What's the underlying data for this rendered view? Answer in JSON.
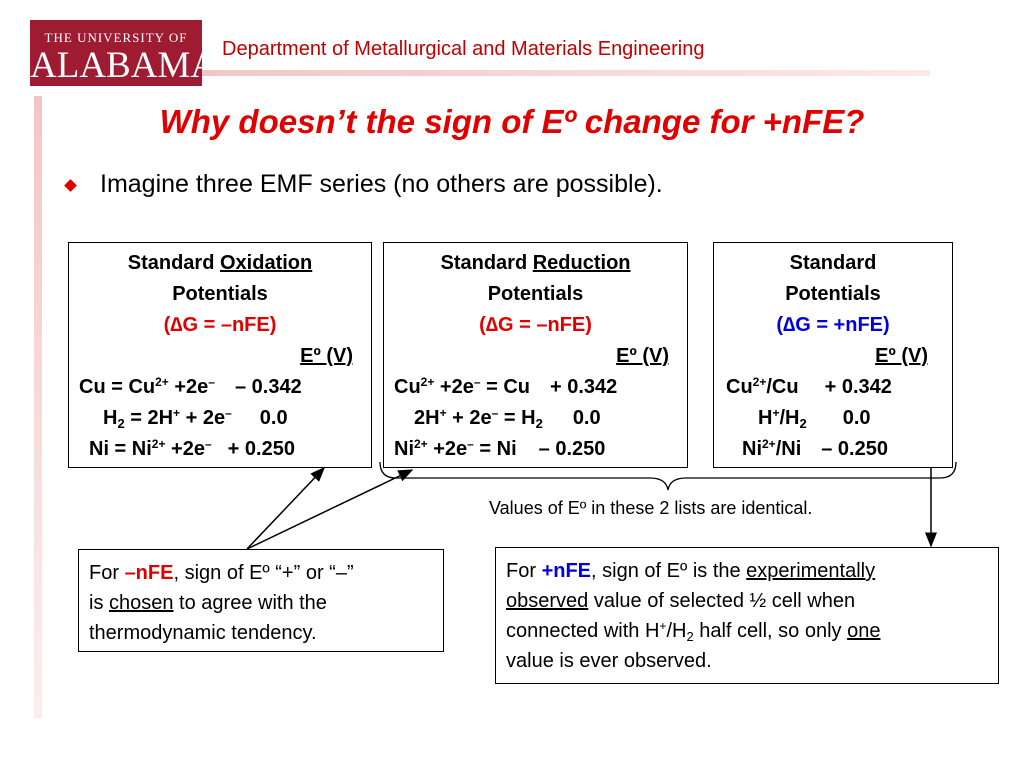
{
  "header": {
    "logo_line1": "THE UNIVERSITY OF",
    "logo_line2": "ALABAMA",
    "department": "Department of Metallurgical and Materials Engineering"
  },
  "title": "Why doesn’t the sign of Eº change for +nFE?",
  "bullet": "Imagine three EMF series (no others are possible).",
  "columns": {
    "oxidation": {
      "h1a": "Standard ",
      "h1b": "Oxidation",
      "h2": "Potentials",
      "eq": "(∆G = –nFE)",
      "unit": "Eº (V)",
      "r1": "Cu = Cu",
      "r1s": "2+",
      "r1b": " +2e",
      "r1c": "–",
      "r1v": "– 0.342",
      "r2": "H",
      "r2s": "2",
      "r2b": " = 2H",
      "r2c": "+",
      "r2d": " + 2e",
      "r2e": "–",
      "r2v": "0.0",
      "r3": "Ni = Ni",
      "r3s": "2+",
      "r3b": " +2e",
      "r3c": "–",
      "r3v": "+ 0.250"
    },
    "reduction": {
      "h1a": "Standard ",
      "h1b": "Reduction",
      "h2": "Potentials",
      "eq": "(∆G = –nFE)",
      "unit": "Eº (V)",
      "r1": "Cu",
      "r1s": "2+",
      "r1b": " +2e",
      "r1c": "–",
      "r1d": " = Cu",
      "r1v": "+ 0.342",
      "r2": "2H",
      "r2s": "+",
      "r2b": " + 2e",
      "r2c": "–",
      "r2d": " = H",
      "r2e": "2",
      "r2v": "0.0",
      "r3": "Ni",
      "r3s": "2+",
      "r3b": " +2e",
      "r3c": "–",
      "r3d": " = Ni",
      "r3v": "– 0.250"
    },
    "standard": {
      "h1": "Standard",
      "h2": "Potentials",
      "eq": "(∆G = +nFE)",
      "unit": "Eº (V)",
      "r1": "Cu",
      "r1s": "2+",
      "r1b": "/Cu",
      "r1v": "+ 0.342",
      "r2": "H",
      "r2s": "+",
      "r2b": "/H",
      "r2c": "2",
      "r2v": "0.0",
      "r3": "Ni",
      "r3s": "2+",
      "r3b": "/Ni",
      "r3v": "– 0.250"
    }
  },
  "note": "Values of Eº in these 2 lists are identical.",
  "left_box": {
    "a": "For ",
    "b": "–nFE",
    "c": ", sign of Eº “+” or “–”",
    "d": "is ",
    "e": "chosen",
    "f": " to agree with the",
    "g": "thermodynamic tendency."
  },
  "right_box": {
    "a": "For ",
    "b": "+nFE",
    "c": ", sign of Eº is the ",
    "d": "experimentally",
    "e": "observed",
    "f": " value of selected ½ cell when",
    "g": "connected with H",
    "h": "+",
    "i": "/H",
    "j": "2",
    "k": " half cell, so only ",
    "l": "one",
    "m": "value is ever observed."
  },
  "colors": {
    "accent_red": "#e00000",
    "logo_red": "#9e1b32",
    "blue": "#0000e0"
  }
}
